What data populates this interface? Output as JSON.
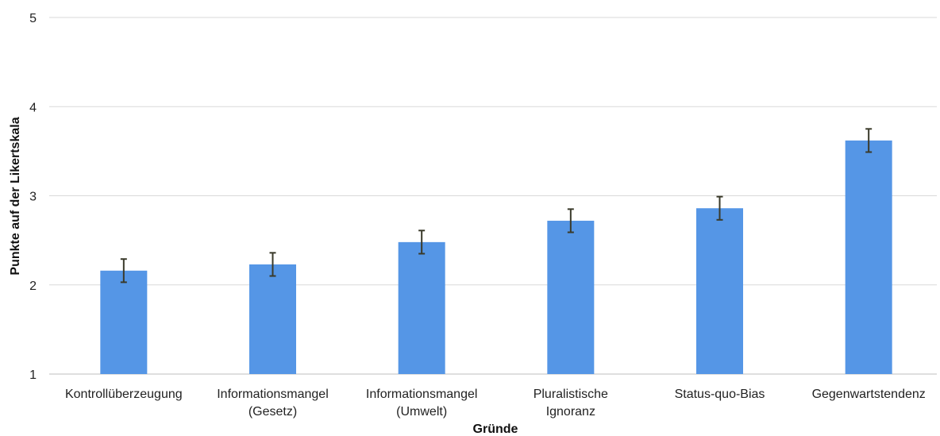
{
  "chart_data": {
    "type": "bar",
    "categories": [
      [
        "Kontrollüberzeugung"
      ],
      [
        "Informationsmangel",
        "(Gesetz)"
      ],
      [
        "Informationsmangel",
        "(Umwelt)"
      ],
      [
        "Pluralistische",
        "Ignoranz"
      ],
      [
        "Status-quo-Bias"
      ],
      [
        "Gegenwartstendenz"
      ]
    ],
    "values": [
      2.16,
      2.23,
      2.48,
      2.72,
      2.86,
      3.62
    ],
    "errors": [
      0.13,
      0.13,
      0.13,
      0.13,
      0.13,
      0.13
    ],
    "xlabel": "Gründe",
    "ylabel": "Punkte auf der Likertskala",
    "ylim": [
      1,
      5
    ],
    "yticks": [
      "1",
      "2",
      "3",
      "4",
      "5"
    ],
    "grid": true,
    "bar_color": "#5596e6"
  }
}
